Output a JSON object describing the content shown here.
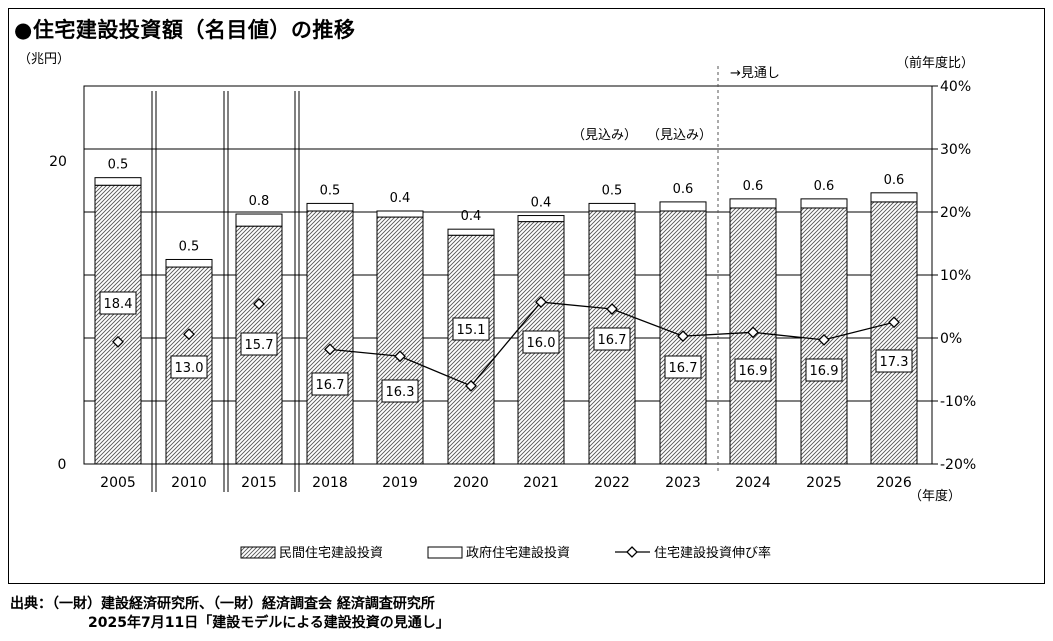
{
  "title": "●住宅建設投資額（名目値）の推移",
  "source": {
    "line1": "出典：（一財）建設経済研究所、（一財）経済調査会 経済調査研究所",
    "line2": "2025年7月11日「建設モデルによる建設投資の見通し」"
  },
  "chart_data": {
    "type": "bar",
    "stacked": true,
    "categories": [
      "2005",
      "2010",
      "2015",
      "2018",
      "2019",
      "2020",
      "2021",
      "2022",
      "2023",
      "2024",
      "2025",
      "2026"
    ],
    "series": [
      {
        "name": "民間住宅建設投資",
        "values": [
          18.4,
          13.0,
          15.7,
          16.7,
          16.3,
          15.1,
          16.0,
          16.7,
          16.7,
          16.9,
          16.9,
          17.3
        ],
        "pattern": "hatched"
      },
      {
        "name": "政府住宅建設投資",
        "values": [
          0.5,
          0.5,
          0.8,
          0.5,
          0.4,
          0.4,
          0.4,
          0.5,
          0.6,
          0.6,
          0.6,
          0.6
        ],
        "pattern": "white"
      }
    ],
    "line_series": {
      "name": "住宅建設投資伸び率",
      "axis": "right",
      "values": [
        null,
        null,
        null,
        -1.8,
        -2.9,
        -7.6,
        5.7,
        4.6,
        0.3,
        0.9,
        -0.3,
        2.5
      ],
      "isolated_points": [
        -0.6,
        0.6,
        5.4
      ]
    },
    "y_left": {
      "unit_label": "（兆円）",
      "ylim": [
        0,
        20
      ],
      "ticks": [
        "0",
        "20"
      ]
    },
    "y_right": {
      "unit_label": "（前年度比）",
      "ylim": [
        -20,
        40
      ],
      "ticks": [
        "-20%",
        "-10%",
        "0%",
        "10%",
        "20%",
        "30%",
        "40%"
      ]
    },
    "x_unit_label": "（年度）",
    "annotations": {
      "forecast_label": "→見通し",
      "estimate_labels": [
        "（見込み）",
        "（見込み）"
      ]
    },
    "grid": true,
    "axis_breaks": [
      "2005-2010",
      "2010-2015",
      "2015-2018"
    ],
    "legend_position": "bottom"
  }
}
